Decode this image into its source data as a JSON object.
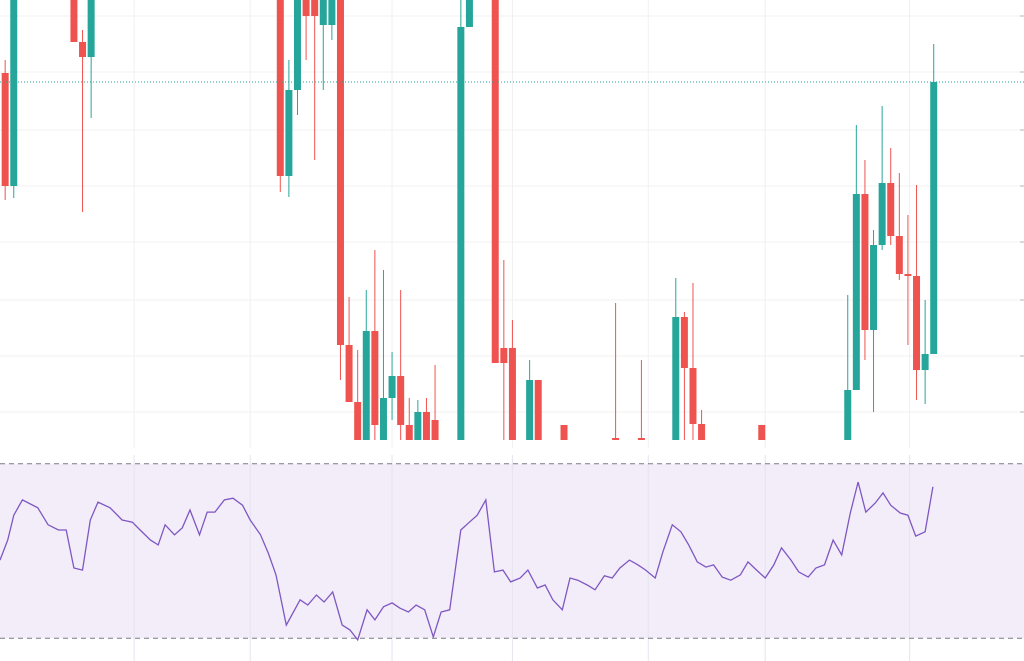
{
  "chart_data": [
    {
      "type": "candlestick",
      "x": [
        0,
        1,
        8,
        9,
        10,
        32,
        33,
        34,
        35,
        36,
        37,
        38,
        39,
        40,
        41,
        42,
        43,
        44,
        45,
        46,
        47,
        48,
        49,
        50,
        53,
        54,
        57,
        58,
        59,
        61,
        62,
        65,
        71,
        74,
        78,
        79,
        80,
        81,
        88,
        98,
        99,
        100,
        101,
        102,
        103,
        104,
        105,
        106,
        107,
        108
      ],
      "open": [
        367,
        254,
        450,
        398,
        383,
        460,
        264,
        350,
        450,
        445,
        415,
        415,
        450,
        95,
        38,
        0,
        109,
        0,
        42,
        64,
        15,
        0,
        28,
        20,
        0,
        413,
        450,
        92,
        92,
        0,
        60,
        15,
        2,
        2,
        0,
        123,
        72,
        16,
        15,
        0,
        50,
        246,
        110,
        195,
        257,
        204,
        166,
        164,
        70,
        86
      ],
      "close": [
        254,
        460,
        398,
        383,
        460,
        264,
        350,
        450,
        424,
        424,
        445,
        445,
        95,
        38,
        0,
        109,
        15,
        42,
        64,
        15,
        0,
        28,
        0,
        0,
        413,
        450,
        77,
        77,
        0,
        60,
        0,
        0,
        0,
        0,
        123,
        72,
        16,
        0,
        0,
        50,
        246,
        110,
        195,
        257,
        204,
        166,
        164,
        70,
        86,
        358
      ],
      "high": [
        380,
        470,
        470,
        410,
        480,
        480,
        380,
        470,
        470,
        460,
        460,
        460,
        470,
        143,
        90,
        150,
        190,
        170,
        88,
        150,
        42,
        40,
        42,
        75,
        450,
        470,
        470,
        180,
        120,
        80,
        60,
        15,
        137,
        80,
        162,
        128,
        157,
        30,
        15,
        145,
        315,
        280,
        210,
        334,
        292,
        267,
        225,
        255,
        140,
        396
      ],
      "low": [
        240,
        242,
        398,
        228,
        322,
        248,
        243,
        325,
        380,
        280,
        350,
        400,
        60,
        38,
        0,
        0,
        0,
        0,
        20,
        0,
        0,
        0,
        0,
        0,
        0,
        413,
        77,
        0,
        0,
        0,
        0,
        0,
        0,
        0,
        0,
        0,
        0,
        0,
        0,
        0,
        50,
        80,
        28,
        190,
        195,
        160,
        95,
        40,
        36,
        86
      ],
      "up_color": "#26a69a",
      "down_color": "#ef5350",
      "xlim": [
        -0.6,
        118.5
      ],
      "ylim": [
        0,
        440
      ],
      "xticks": [
        15,
        28.5,
        45,
        59,
        74.8,
        88.4,
        105.2
      ],
      "yticks": [
        28,
        84,
        140,
        198,
        254,
        310,
        368,
        424
      ],
      "grid": true,
      "last_price_line": true
    },
    {
      "type": "line",
      "x": [
        -0.6,
        0.3,
        1.0,
        2.0,
        3.8,
        5.0,
        6.2,
        7.1,
        8.0,
        9.0,
        9.9,
        10.8,
        12.2,
        13.6,
        14.8,
        15.7,
        16.9,
        17.8,
        18.6,
        19.7,
        20.6,
        21.5,
        22.6,
        23.5,
        24.4,
        25.5,
        26.5,
        27.6,
        28.5,
        29.7,
        30.6,
        31.5,
        32.7,
        34.3,
        35.2,
        36.2,
        37.1,
        38.1,
        39.2,
        40.1,
        41.0,
        42.1,
        43.0,
        44.0,
        45.0,
        45.9,
        46.9,
        47.8,
        48.8,
        49.8,
        50.7,
        51.7,
        53.0,
        54.0,
        54.9,
        55.9,
        56.9,
        57.9,
        58.8,
        59.9,
        60.8,
        61.9,
        62.8,
        63.7,
        64.8,
        65.7,
        66.6,
        67.7,
        68.6,
        69.7,
        70.6,
        71.5,
        72.6,
        73.6,
        74.5,
        75.6,
        76.5,
        77.6,
        78.6,
        79.5,
        80.5,
        81.5,
        82.4,
        83.4,
        84.4,
        85.5,
        86.4,
        87.4,
        88.4,
        89.4,
        90.3,
        91.4,
        92.3,
        93.4,
        94.3,
        95.3,
        96.3,
        97.3,
        98.3,
        99.2,
        100.1,
        101.2,
        102.1,
        103.0,
        104.1,
        105.0,
        105.9,
        107.0,
        107.9
      ],
      "values": [
        47.9,
        52.5,
        58.2,
        61.7,
        59.9,
        56.0,
        54.8,
        54.8,
        46.1,
        45.6,
        57.1,
        61.2,
        59.9,
        57.1,
        56.6,
        54.8,
        52.5,
        51.4,
        56.0,
        53.7,
        55.3,
        59.4,
        53.7,
        58.9,
        58.9,
        61.7,
        62.1,
        60.5,
        57.1,
        53.7,
        49.5,
        44.5,
        33.0,
        38.8,
        37.6,
        39.9,
        38.3,
        40.6,
        33.0,
        31.9,
        29.6,
        36.5,
        34.2,
        37.2,
        38.1,
        36.9,
        36.0,
        37.6,
        36.5,
        30.3,
        36.0,
        36.5,
        54.8,
        56.6,
        58.2,
        61.7,
        45.2,
        45.6,
        42.9,
        43.8,
        45.6,
        41.5,
        42.2,
        38.8,
        36.5,
        43.8,
        43.3,
        42.2,
        41.1,
        44.3,
        43.8,
        46.1,
        47.9,
        46.8,
        45.6,
        43.8,
        49.8,
        56.0,
        54.4,
        51.4,
        47.5,
        46.3,
        46.8,
        44.0,
        43.3,
        44.5,
        47.5,
        45.6,
        43.8,
        46.8,
        50.7,
        47.9,
        45.2,
        44.0,
        46.1,
        46.8,
        52.5,
        49.1,
        58.7,
        65.8,
        58.9,
        61.0,
        63.3,
        60.5,
        58.7,
        58.2,
        53.4,
        54.4,
        64.7
      ],
      "color": "#7e57c2",
      "band_color": "#ede7f6",
      "bands": [
        30,
        70
      ],
      "xlim": [
        -0.6,
        118.5
      ],
      "ylim": [
        25,
        72
      ],
      "xticks": [
        15,
        28.5,
        45,
        59,
        74.8,
        88.4,
        105.2
      ],
      "grid": true
    }
  ]
}
